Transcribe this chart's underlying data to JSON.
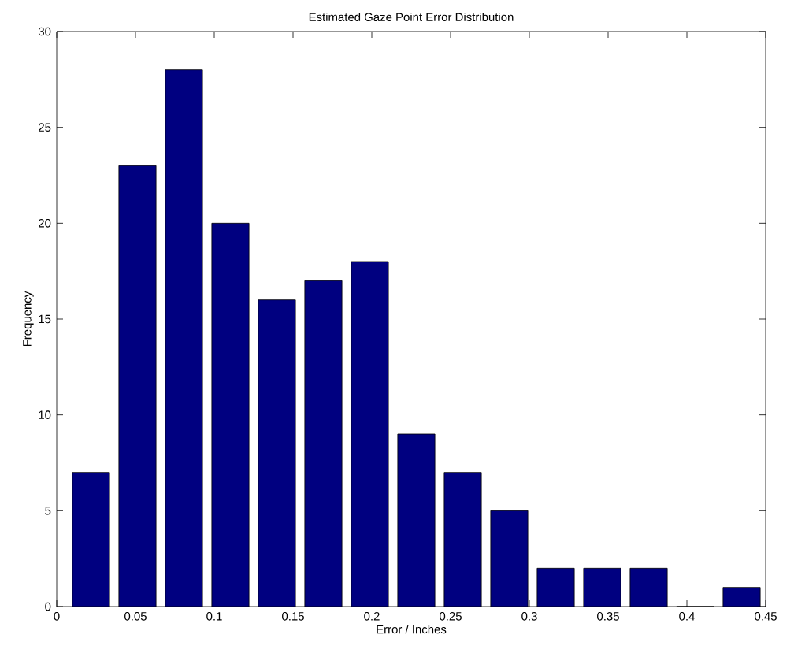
{
  "chart_data": {
    "type": "histogram",
    "title": "Estimated Gaze Point Error Distribution",
    "xlabel": "Error / Inches",
    "ylabel": "Frequency",
    "bins": [
      0.007,
      0.0365,
      0.066,
      0.0955,
      0.125,
      0.1545,
      0.184,
      0.2135,
      0.243,
      0.2725,
      0.302,
      0.3315,
      0.361,
      0.3905,
      0.42,
      0.4495
    ],
    "values": [
      7,
      23,
      28,
      20,
      16,
      17,
      18,
      9,
      7,
      5,
      2,
      2,
      2,
      0,
      1
    ],
    "color": "#000080",
    "xlim": [
      0,
      0.45
    ],
    "ylim": [
      0,
      30
    ],
    "xticks": [
      0,
      0.05,
      0.1,
      0.15,
      0.2,
      0.25,
      0.3,
      0.35,
      0.4,
      0.45
    ],
    "yticks": [
      0,
      5,
      10,
      15,
      20,
      25,
      30
    ],
    "grid": false
  }
}
